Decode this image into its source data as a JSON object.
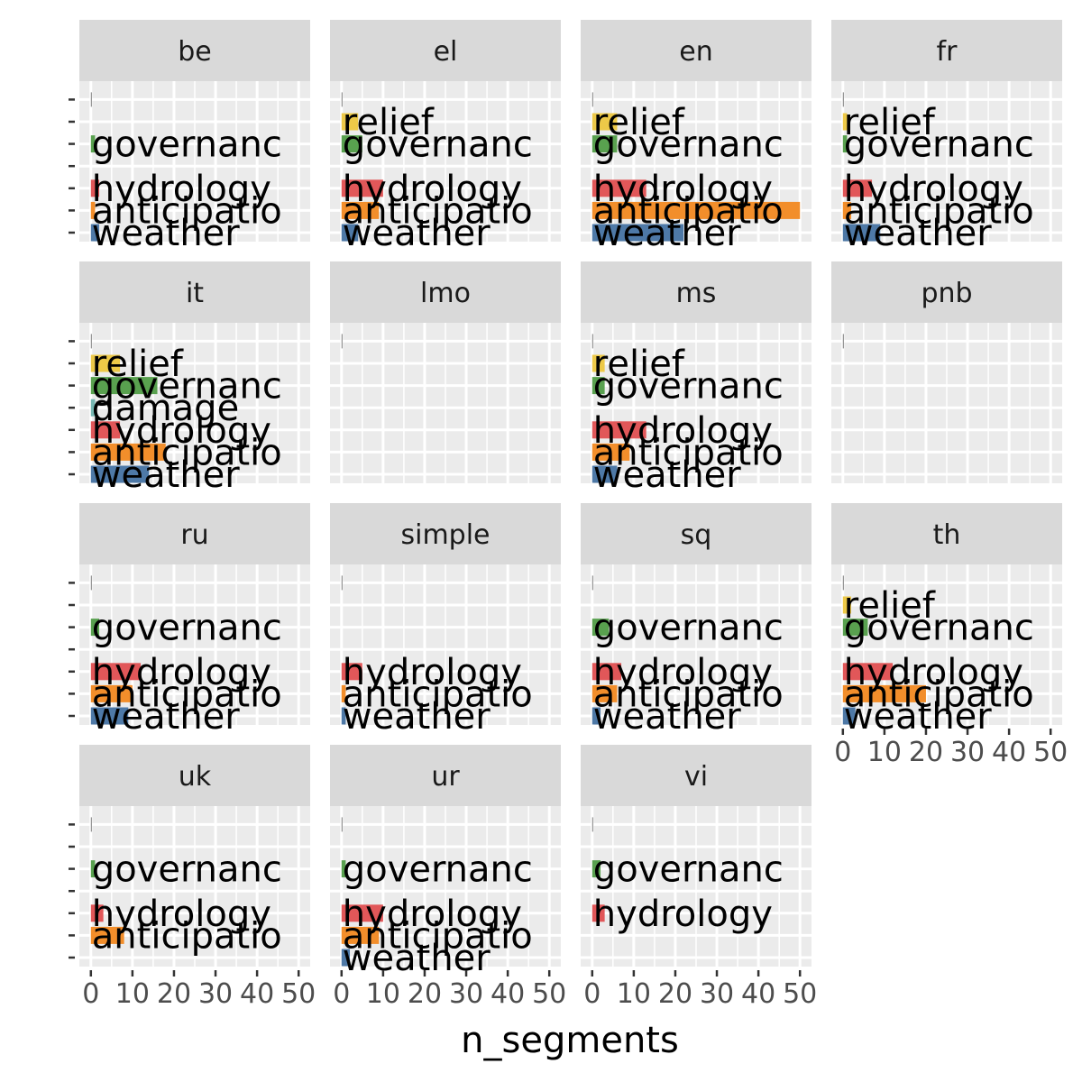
{
  "chart_data": {
    "type": "bar",
    "orientation": "horizontal",
    "facet_by": "language",
    "xlabel": "n_segments",
    "ylabel": "",
    "xlim": [
      0,
      50
    ],
    "x_ticks": [
      "0",
      "10",
      "20",
      "30",
      "40",
      "50"
    ],
    "grid": true,
    "category_order": [
      "weather",
      "anticipatio",
      "hydrology",
      "damage",
      "governanc",
      "relief",
      "NA"
    ],
    "category_colors": {
      "weather": "#4e79a7",
      "anticipatio": "#f28e2b",
      "hydrology": "#e15759",
      "damage": "#76b7b2",
      "governanc": "#59a14f",
      "relief": "#edc948",
      "NA": "#7f7f7f"
    },
    "facets": [
      {
        "name": "be",
        "bars": [
          {
            "category": "weather",
            "value": 2
          },
          {
            "category": "anticipatio",
            "value": 1
          },
          {
            "category": "hydrology",
            "value": 2
          },
          {
            "category": "governanc",
            "value": 1
          },
          {
            "category": "NA",
            "value": 1
          }
        ]
      },
      {
        "name": "el",
        "bars": [
          {
            "category": "weather",
            "value": 4
          },
          {
            "category": "anticipatio",
            "value": 9
          },
          {
            "category": "hydrology",
            "value": 10
          },
          {
            "category": "governanc",
            "value": 5
          },
          {
            "category": "relief",
            "value": 4
          },
          {
            "category": "NA",
            "value": 1
          }
        ]
      },
      {
        "name": "en",
        "bars": [
          {
            "category": "weather",
            "value": 22
          },
          {
            "category": "anticipatio",
            "value": 50
          },
          {
            "category": "hydrology",
            "value": 13
          },
          {
            "category": "governanc",
            "value": 6
          },
          {
            "category": "relief",
            "value": 6
          },
          {
            "category": "NA",
            "value": 1
          }
        ]
      },
      {
        "name": "fr",
        "bars": [
          {
            "category": "weather",
            "value": 9
          },
          {
            "category": "anticipatio",
            "value": 2
          },
          {
            "category": "hydrology",
            "value": 7
          },
          {
            "category": "governanc",
            "value": 1
          },
          {
            "category": "relief",
            "value": 1
          },
          {
            "category": "NA",
            "value": 1
          }
        ]
      },
      {
        "name": "it",
        "bars": [
          {
            "category": "weather",
            "value": 14
          },
          {
            "category": "anticipatio",
            "value": 18
          },
          {
            "category": "hydrology",
            "value": 7
          },
          {
            "category": "damage",
            "value": 1
          },
          {
            "category": "governanc",
            "value": 16
          },
          {
            "category": "relief",
            "value": 7
          },
          {
            "category": "NA",
            "value": 1
          }
        ]
      },
      {
        "name": "lmo",
        "bars": [
          {
            "category": "NA",
            "value": 1
          }
        ]
      },
      {
        "name": "ms",
        "bars": [
          {
            "category": "weather",
            "value": 6
          },
          {
            "category": "anticipatio",
            "value": 9
          },
          {
            "category": "hydrology",
            "value": 13
          },
          {
            "category": "governanc",
            "value": 3
          },
          {
            "category": "relief",
            "value": 3
          },
          {
            "category": "NA",
            "value": 1
          }
        ]
      },
      {
        "name": "pnb",
        "bars": [
          {
            "category": "NA",
            "value": 1
          }
        ]
      },
      {
        "name": "ru",
        "bars": [
          {
            "category": "weather",
            "value": 9
          },
          {
            "category": "anticipatio",
            "value": 10
          },
          {
            "category": "hydrology",
            "value": 12
          },
          {
            "category": "governanc",
            "value": 2
          },
          {
            "category": "NA",
            "value": 1
          }
        ]
      },
      {
        "name": "simple",
        "bars": [
          {
            "category": "weather",
            "value": 1
          },
          {
            "category": "anticipatio",
            "value": 1
          },
          {
            "category": "hydrology",
            "value": 5
          },
          {
            "category": "NA",
            "value": 1
          }
        ]
      },
      {
        "name": "sq",
        "bars": [
          {
            "category": "weather",
            "value": 2
          },
          {
            "category": "anticipatio",
            "value": 6
          },
          {
            "category": "hydrology",
            "value": 7
          },
          {
            "category": "governanc",
            "value": 4
          },
          {
            "category": "NA",
            "value": 1
          }
        ]
      },
      {
        "name": "th",
        "bars": [
          {
            "category": "weather",
            "value": 3
          },
          {
            "category": "anticipatio",
            "value": 20
          },
          {
            "category": "hydrology",
            "value": 12
          },
          {
            "category": "governanc",
            "value": 6
          },
          {
            "category": "relief",
            "value": 2
          },
          {
            "category": "NA",
            "value": 1
          }
        ]
      },
      {
        "name": "uk",
        "bars": [
          {
            "category": "anticipatio",
            "value": 8
          },
          {
            "category": "hydrology",
            "value": 3
          },
          {
            "category": "governanc",
            "value": 1
          },
          {
            "category": "NA",
            "value": 1
          }
        ]
      },
      {
        "name": "ur",
        "bars": [
          {
            "category": "weather",
            "value": 2
          },
          {
            "category": "anticipatio",
            "value": 9
          },
          {
            "category": "hydrology",
            "value": 10
          },
          {
            "category": "governanc",
            "value": 1
          },
          {
            "category": "NA",
            "value": 1
          }
        ]
      },
      {
        "name": "vi",
        "bars": [
          {
            "category": "hydrology",
            "value": 3
          },
          {
            "category": "governanc",
            "value": 2
          },
          {
            "category": "NA",
            "value": 1
          }
        ]
      }
    ]
  }
}
